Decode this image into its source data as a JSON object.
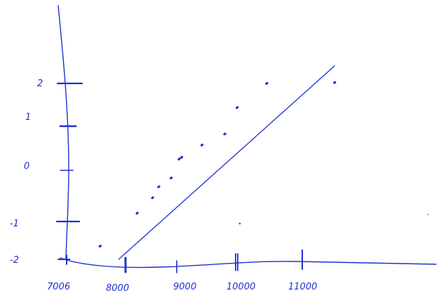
{
  "chart_data": {
    "type": "scatter",
    "title": "",
    "xlabel": "",
    "ylabel": "",
    "x_ticks": [
      "7006",
      "8000",
      "9000",
      "10000",
      "11000"
    ],
    "y_ticks": [
      "2",
      "1",
      "0",
      "-1",
      "-2"
    ],
    "xlim": [
      7000,
      12000
    ],
    "ylim": [
      -2,
      2
    ],
    "points": [
      {
        "x": 7600,
        "y": -1.7
      },
      {
        "x": 8200,
        "y": -0.95
      },
      {
        "x": 8450,
        "y": -0.6
      },
      {
        "x": 8550,
        "y": -0.35
      },
      {
        "x": 8750,
        "y": -0.15
      },
      {
        "x": 8880,
        "y": 0.28
      },
      {
        "x": 8920,
        "y": 0.32
      },
      {
        "x": 9250,
        "y": 0.6
      },
      {
        "x": 9620,
        "y": 0.85
      },
      {
        "x": 9820,
        "y": 1.45
      },
      {
        "x": 10300,
        "y": 2.0
      },
      {
        "x": 11400,
        "y": 2.02
      }
    ],
    "fit_line": [
      {
        "x": 7900,
        "y": -2.0
      },
      {
        "x": 11400,
        "y": 2.4
      }
    ],
    "colors": {
      "ink": "#1f2fd1"
    }
  }
}
